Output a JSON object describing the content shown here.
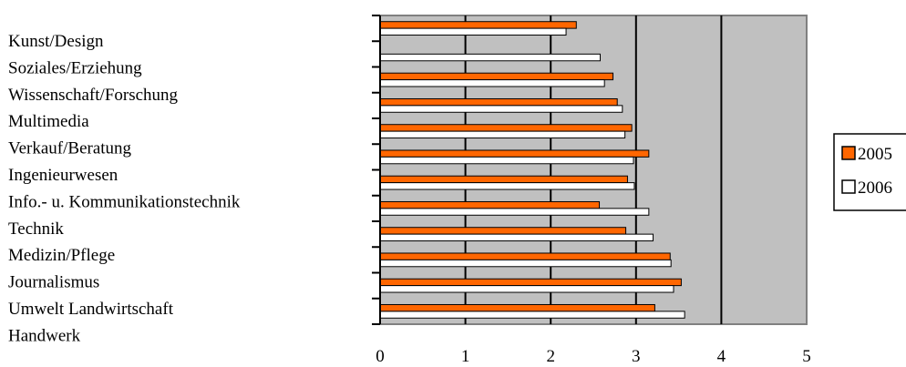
{
  "chart_data": {
    "type": "bar",
    "orientation": "horizontal",
    "categories": [
      "Kunst/Design",
      "Soziales/Erziehung",
      "Wissenschaft/Forschung",
      "Multimedia",
      "Verkauf/Beratung",
      "Ingenieurwesen",
      "Info.- u. Kommunikationstechnik",
      "Technik",
      "Medizin/Pflege",
      "Journalismus",
      "Umwelt Landwirtschaft",
      "Handwerk"
    ],
    "series": [
      {
        "name": "2005",
        "color": "#ff6600",
        "values": [
          2.3,
          null,
          2.73,
          2.78,
          2.95,
          3.15,
          2.9,
          2.57,
          2.88,
          3.4,
          3.53,
          3.22
        ]
      },
      {
        "name": "2006",
        "color": "#ffffff",
        "values": [
          2.18,
          2.58,
          2.63,
          2.84,
          2.87,
          2.97,
          2.98,
          3.15,
          3.2,
          3.41,
          3.44,
          3.57
        ]
      }
    ],
    "xlim": [
      0,
      5
    ],
    "xticks": [
      "0",
      "1",
      "2",
      "3",
      "4",
      "5"
    ],
    "title": "",
    "xlabel": "",
    "ylabel": "",
    "plot_background": "#c0c0c0",
    "grid": "vertical major lines",
    "legend_position": "right"
  }
}
